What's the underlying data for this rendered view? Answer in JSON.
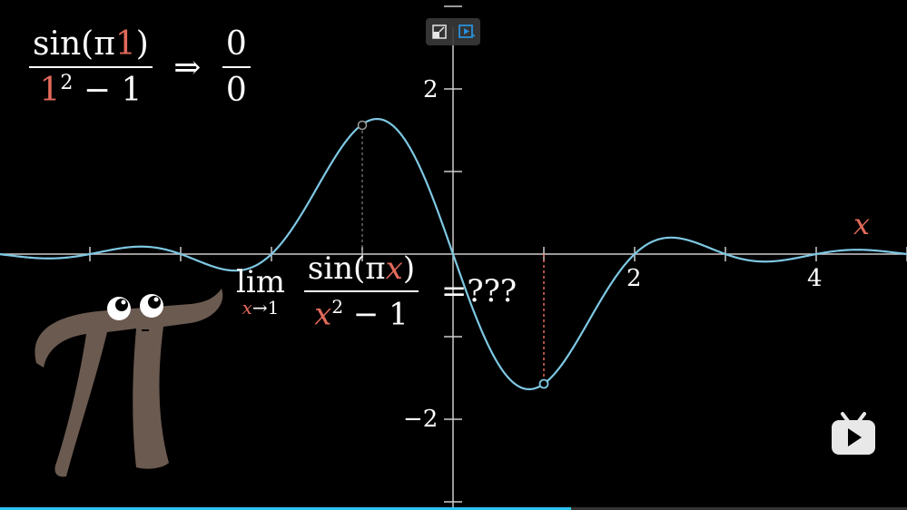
{
  "top_formula": {
    "num_prefix": "sin(π",
    "num_value": "1",
    "num_suffix": ")",
    "den_value": "1",
    "den_exp": "2",
    "den_suffix": " − 1",
    "arrow": "⇒",
    "result_num": "0",
    "result_den": "0"
  },
  "limit_formula": {
    "lim": "lim",
    "sub_var": "x",
    "sub_arrow": "→1",
    "num_prefix": "sin(π",
    "num_var": "x",
    "num_suffix": ")",
    "den_var": "x",
    "den_exp": "2",
    "den_suffix": " − 1",
    "equals": "=???"
  },
  "axis_labels": {
    "x_var": "x",
    "x_ticks": [
      "2",
      "4"
    ],
    "y_ticks": [
      "2",
      "−2"
    ]
  },
  "controls": {
    "left_icon": "pip-icon",
    "right_icon": "play-screen-icon"
  },
  "logo_icon": "bilibili-tv-icon",
  "progress": 0.63,
  "colors": {
    "curve": "#7ec8e3",
    "highlight": "#e36a5b",
    "pi_creature": "#6b5a50",
    "progress": "#2ec4f2"
  }
}
